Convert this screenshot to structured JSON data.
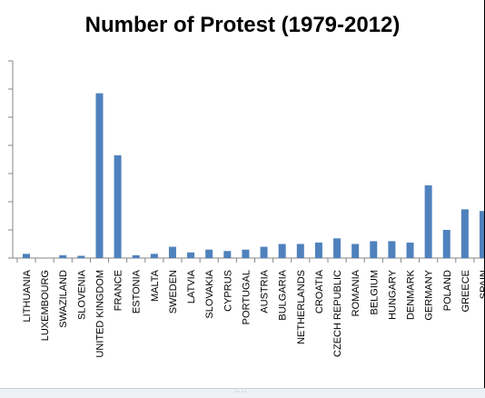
{
  "chart_data": {
    "type": "bar",
    "title": "Number of Protest (1979-2012)",
    "xlabel": "",
    "ylabel": "",
    "ylim": [
      0,
      70
    ],
    "grid": false,
    "legend": "none",
    "bar_color": "#4f81bd",
    "categories": [
      "LITHUANIA",
      "LUXEMBOURG",
      "SWAZILAND",
      "SLOVENIA",
      "UNITED KINGDOM",
      "FRANCE",
      "ESTONIA",
      "MALTA",
      "SWEDEN",
      "LATVIA",
      "SLOVAKIA",
      "CYPRUS",
      "PORTUGAL",
      "AUSTRIA",
      "BULGARIA",
      "NETHERLANDS",
      "CROATIA",
      "CZECH REPUBLIC",
      "ROMANIA",
      "BELGIUM",
      "HUNGARY",
      "DENMARK",
      "GERMANY",
      "POLAND",
      "GREECE",
      "SPAIN"
    ],
    "values": [
      1.5,
      0,
      1,
      0.8,
      58.5,
      36.5,
      1,
      1.5,
      4,
      2,
      3,
      2.5,
      3,
      4,
      5,
      5,
      5.5,
      7,
      5,
      6,
      6,
      5.5,
      25.8,
      10,
      17.3,
      16.7
    ]
  },
  "window": {
    "resize_grip": "····"
  }
}
